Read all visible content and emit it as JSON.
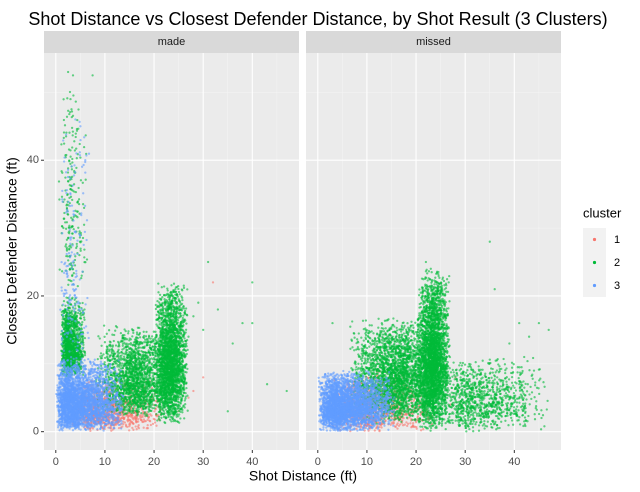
{
  "chart_data": {
    "type": "scatter",
    "title": "Shot Distance vs Closest Defender Distance, by Shot Result (3 Clusters)",
    "xlabel": "Shot Distance (ft)",
    "ylabel": "Closest Defender Distance (ft)",
    "xlim": [
      -2.4,
      49.5
    ],
    "ylim": [
      -2.7,
      55.8
    ],
    "x_ticks": [
      0,
      10,
      20,
      30,
      40
    ],
    "y_ticks": [
      0,
      20,
      40
    ],
    "facets": [
      "made",
      "missed"
    ],
    "grid": true,
    "point_alpha": 0.6,
    "legend": {
      "title": "cluster",
      "position": "right",
      "entries": [
        {
          "label": "1",
          "color": "#F8766D"
        },
        {
          "label": "2",
          "color": "#00BA38"
        },
        {
          "label": "3",
          "color": "#619CFF"
        }
      ]
    },
    "series": [
      {
        "facet": "made",
        "cluster": "1",
        "color": "#F8766D",
        "clouds": [
          {
            "n": 900,
            "x_min": 3,
            "x_max": 22,
            "y_min": 0,
            "y_max": 8,
            "x_mode": 8,
            "y_mode": 2
          }
        ],
        "points": [
          [
            32,
            22
          ],
          [
            30,
            8
          ],
          [
            27,
            5
          ],
          [
            25,
            3
          ],
          [
            28,
            6
          ],
          [
            24,
            9
          ]
        ]
      },
      {
        "facet": "made",
        "cluster": "2",
        "color": "#00BA38",
        "clouds": [
          {
            "n": 1300,
            "x_min": 1,
            "x_max": 6,
            "y_min": 8,
            "y_max": 20,
            "x_mode": 2.5,
            "y_mode": 11
          },
          {
            "n": 220,
            "x_min": 0.5,
            "x_max": 6.5,
            "y_min": 20,
            "y_max": 53,
            "x_mode": 3,
            "y_mode": 24
          },
          {
            "n": 1900,
            "x_min": 8,
            "x_max": 24,
            "y_min": 2,
            "y_max": 16,
            "x_mode": 16,
            "y_mode": 6
          },
          {
            "n": 2600,
            "x_min": 20,
            "x_max": 27,
            "y_min": 1,
            "y_max": 22,
            "x_mode": 23.5,
            "y_mode": 9
          }
        ],
        "points": [
          [
            2.5,
            53
          ],
          [
            3.5,
            52.5
          ],
          [
            7.5,
            52.5
          ],
          [
            3,
            49
          ],
          [
            3.2,
            47.5
          ],
          [
            31,
            25
          ],
          [
            40,
            22
          ],
          [
            43,
            7
          ],
          [
            47,
            6
          ],
          [
            38,
            16
          ],
          [
            36,
            13
          ],
          [
            40,
            16
          ],
          [
            35,
            3
          ],
          [
            29,
            19
          ],
          [
            28,
            17
          ],
          [
            33,
            18
          ],
          [
            30,
            15
          ],
          [
            27,
            14
          ]
        ]
      },
      {
        "facet": "made",
        "cluster": "3",
        "color": "#619CFF",
        "clouds": [
          {
            "n": 3000,
            "x_min": 0,
            "x_max": 14,
            "y_min": 0,
            "y_max": 11,
            "x_mode": 2,
            "y_mode": 3
          },
          {
            "n": 180,
            "x_min": 0.5,
            "x_max": 7,
            "y_min": 10,
            "y_max": 46,
            "x_mode": 3,
            "y_mode": 13
          }
        ],
        "points": [
          [
            4,
            46
          ],
          [
            5,
            45
          ],
          [
            6,
            40
          ]
        ]
      },
      {
        "facet": "missed",
        "cluster": "1",
        "color": "#F8766D",
        "clouds": [
          {
            "n": 900,
            "x_min": 2,
            "x_max": 24,
            "y_min": 0,
            "y_max": 9,
            "x_mode": 10,
            "y_mode": 2.5
          }
        ],
        "points": [
          [
            25,
            6
          ],
          [
            27,
            4
          ],
          [
            28,
            8
          ]
        ]
      },
      {
        "facet": "missed",
        "cluster": "2",
        "color": "#00BA38",
        "clouds": [
          {
            "n": 2600,
            "x_min": 6,
            "x_max": 24,
            "y_min": 1,
            "y_max": 17,
            "x_mode": 17,
            "y_mode": 7
          },
          {
            "n": 3200,
            "x_min": 20,
            "x_max": 27,
            "y_min": 0,
            "y_max": 24,
            "x_mode": 23.5,
            "y_mode": 9
          },
          {
            "n": 1000,
            "x_min": 26,
            "x_max": 47,
            "y_min": 0,
            "y_max": 11,
            "x_mode": 29,
            "y_mode": 4
          }
        ],
        "points": [
          [
            35,
            28
          ],
          [
            23,
            24
          ],
          [
            22,
            25
          ],
          [
            3,
            16
          ],
          [
            36,
            21
          ],
          [
            41,
            16
          ],
          [
            47,
            15
          ],
          [
            45,
            16
          ],
          [
            43,
            14
          ],
          [
            42,
            11
          ],
          [
            39,
            13
          ],
          [
            44,
            9
          ]
        ]
      },
      {
        "facet": "missed",
        "cluster": "3",
        "color": "#619CFF",
        "clouds": [
          {
            "n": 3100,
            "x_min": 0,
            "x_max": 16,
            "y_min": 0,
            "y_max": 9,
            "x_mode": 3,
            "y_mode": 3
          }
        ],
        "points": []
      }
    ]
  }
}
